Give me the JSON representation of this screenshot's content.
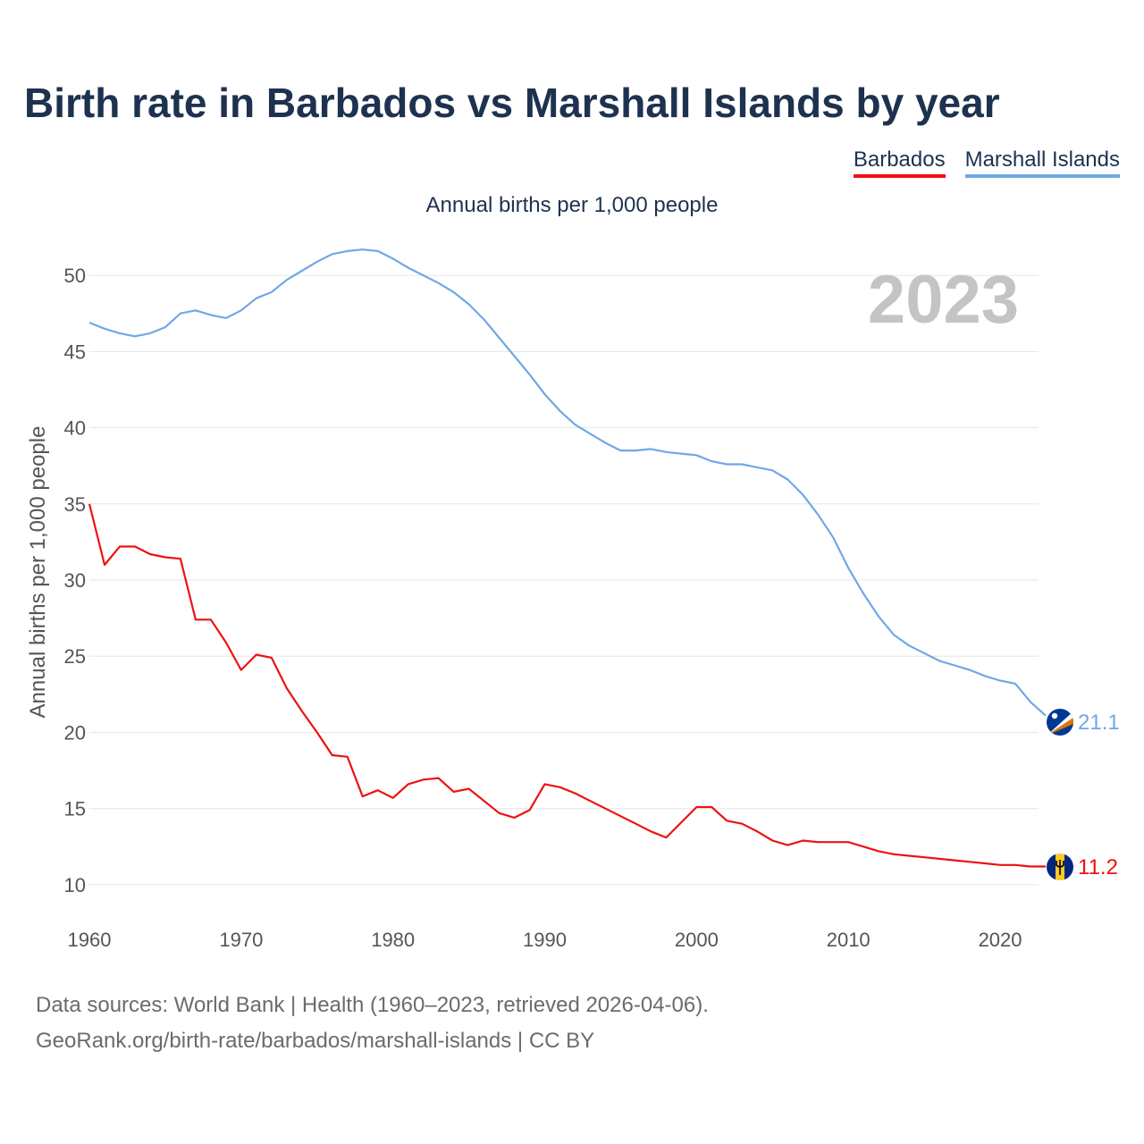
{
  "title": "Birth rate in Barbados vs Marshall Islands by year",
  "subtitle": "Annual births per 1,000 people",
  "year_badge": "2023",
  "legend": [
    {
      "name": "Barbados",
      "color": "#ee1111"
    },
    {
      "name": "Marshall Islands",
      "color": "#6fa8e6"
    }
  ],
  "footer": {
    "line1": "Data sources: World Bank | Health (1960–2023, retrieved 2026-04-06).",
    "line2": "GeoRank.org/birth-rate/barbados/marshall-islands | CC BY"
  },
  "chart_data": {
    "type": "line",
    "title": "Birth rate in Barbados vs Marshall Islands by year",
    "xlabel": "",
    "ylabel": "Annual births per 1,000 people",
    "xlim": [
      1960,
      2023
    ],
    "ylim": [
      8,
      53
    ],
    "xticks": [
      1960,
      1970,
      1980,
      1990,
      2000,
      2010,
      2020
    ],
    "yticks": [
      10,
      15,
      20,
      25,
      30,
      35,
      40,
      45,
      50
    ],
    "grid": true,
    "legend_position": "top-right",
    "x": [
      1960,
      1961,
      1962,
      1963,
      1964,
      1965,
      1966,
      1967,
      1968,
      1969,
      1970,
      1971,
      1972,
      1973,
      1974,
      1975,
      1976,
      1977,
      1978,
      1979,
      1980,
      1981,
      1982,
      1983,
      1984,
      1985,
      1986,
      1987,
      1988,
      1989,
      1990,
      1991,
      1992,
      1993,
      1994,
      1995,
      1996,
      1997,
      1998,
      1999,
      2000,
      2001,
      2002,
      2003,
      2004,
      2005,
      2006,
      2007,
      2008,
      2009,
      2010,
      2011,
      2012,
      2013,
      2014,
      2015,
      2016,
      2017,
      2018,
      2019,
      2020,
      2021,
      2022,
      2023
    ],
    "series": [
      {
        "name": "Barbados",
        "color": "#ee1111",
        "end_label": "11.2",
        "values": [
          35.0,
          31.0,
          32.2,
          32.2,
          31.7,
          31.5,
          31.4,
          27.4,
          27.4,
          25.9,
          24.1,
          25.1,
          24.9,
          22.9,
          21.4,
          20.0,
          18.5,
          18.4,
          15.8,
          16.2,
          15.7,
          16.6,
          16.9,
          17.0,
          16.1,
          16.3,
          15.5,
          14.7,
          14.4,
          14.9,
          16.6,
          16.4,
          16.0,
          15.5,
          15.0,
          14.5,
          14.0,
          13.5,
          13.1,
          14.1,
          15.1,
          15.1,
          14.2,
          14.0,
          13.5,
          12.9,
          12.6,
          12.9,
          12.8,
          12.8,
          12.8,
          12.5,
          12.2,
          12.0,
          11.9,
          11.8,
          11.7,
          11.6,
          11.5,
          11.4,
          11.3,
          11.3,
          11.2,
          11.2
        ]
      },
      {
        "name": "Marshall Islands",
        "color": "#6fa8e6",
        "end_label": "21.1",
        "values": [
          46.9,
          46.5,
          46.2,
          46.0,
          46.2,
          46.6,
          47.5,
          47.7,
          47.4,
          47.2,
          47.7,
          48.5,
          48.9,
          49.7,
          50.3,
          50.9,
          51.4,
          51.6,
          51.7,
          51.6,
          51.1,
          50.5,
          50.0,
          49.5,
          48.9,
          48.1,
          47.1,
          45.9,
          44.7,
          43.5,
          42.2,
          41.1,
          40.2,
          39.6,
          39.0,
          38.5,
          38.5,
          38.6,
          38.4,
          38.3,
          38.2,
          37.8,
          37.6,
          37.6,
          37.4,
          37.2,
          36.6,
          35.6,
          34.3,
          32.8,
          30.8,
          29.1,
          27.6,
          26.4,
          25.7,
          25.2,
          24.7,
          24.4,
          24.1,
          23.7,
          23.4,
          23.2,
          22.0,
          21.1
        ]
      }
    ]
  }
}
